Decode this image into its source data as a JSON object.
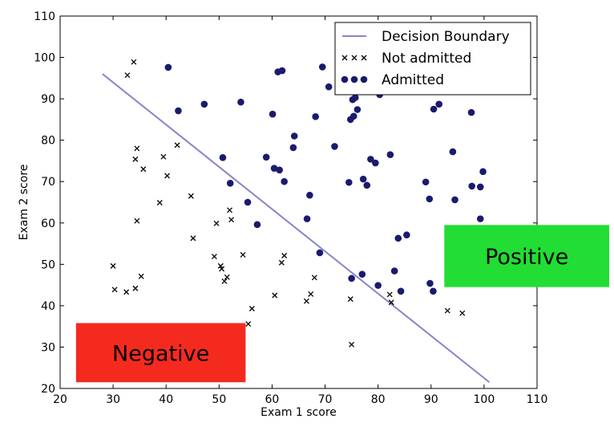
{
  "chart_data": {
    "type": "scatter",
    "xlabel": "Exam 1 score",
    "ylabel": "Exam 2 score",
    "xlim": [
      20,
      110
    ],
    "ylim": [
      20,
      110
    ],
    "xticks": [
      20,
      30,
      40,
      50,
      60,
      70,
      80,
      90,
      100,
      110
    ],
    "yticks": [
      20,
      30,
      40,
      50,
      60,
      70,
      80,
      90,
      100,
      110
    ],
    "grid": false,
    "legend_position": "top-right",
    "colors": {
      "boundary": "#8884c8",
      "admitted": "#1a1a6e",
      "not_admitted": "#000000",
      "negative_box": "#f52a1e",
      "positive_box": "#22dd33"
    },
    "boundary": {
      "name": "Decision Boundary",
      "x": [
        28,
        101
      ],
      "y": [
        96,
        21.5
      ]
    },
    "series": [
      {
        "name": "Not admitted",
        "marker": "x",
        "points": [
          [
            32.7,
            95.7
          ],
          [
            33.9,
            98.9
          ],
          [
            34.2,
            75.4
          ],
          [
            34.5,
            78.0
          ],
          [
            35.7,
            73.0
          ],
          [
            39.5,
            76.0
          ],
          [
            40.2,
            71.4
          ],
          [
            42.1,
            78.8
          ],
          [
            38.8,
            64.9
          ],
          [
            44.7,
            66.5
          ],
          [
            34.5,
            60.5
          ],
          [
            45.1,
            56.3
          ],
          [
            30.0,
            49.6
          ],
          [
            30.3,
            43.9
          ],
          [
            32.5,
            43.3
          ],
          [
            34.2,
            44.2
          ],
          [
            35.3,
            47.1
          ],
          [
            49.1,
            51.9
          ],
          [
            49.5,
            59.9
          ],
          [
            50.3,
            49.6
          ],
          [
            50.5,
            48.9
          ],
          [
            51.0,
            45.9
          ],
          [
            51.5,
            46.9
          ],
          [
            52.0,
            63.1
          ],
          [
            52.3,
            60.8
          ],
          [
            54.5,
            52.3
          ],
          [
            55.5,
            35.6
          ],
          [
            56.2,
            39.3
          ],
          [
            60.5,
            42.5
          ],
          [
            61.8,
            50.4
          ],
          [
            62.3,
            52.1
          ],
          [
            66.5,
            41.1
          ],
          [
            67.3,
            42.8
          ],
          [
            68.0,
            46.8
          ],
          [
            74.8,
            41.6
          ],
          [
            75.0,
            30.6
          ],
          [
            82.2,
            42.7
          ],
          [
            82.5,
            40.8
          ],
          [
            93.1,
            38.8
          ],
          [
            95.9,
            38.2
          ]
        ]
      },
      {
        "name": "Admitted",
        "marker": "o",
        "points": [
          [
            40.4,
            97.6
          ],
          [
            42.3,
            87.1
          ],
          [
            47.2,
            88.7
          ],
          [
            50.7,
            75.8
          ],
          [
            52.1,
            69.6
          ],
          [
            54.1,
            89.2
          ],
          [
            55.4,
            65.0
          ],
          [
            57.2,
            59.6
          ],
          [
            58.9,
            75.9
          ],
          [
            60.1,
            86.3
          ],
          [
            60.4,
            73.2
          ],
          [
            61.1,
            96.5
          ],
          [
            61.4,
            72.8
          ],
          [
            61.9,
            96.8
          ],
          [
            62.3,
            70.0
          ],
          [
            64.0,
            78.2
          ],
          [
            64.2,
            81.0
          ],
          [
            66.6,
            61.0
          ],
          [
            67.1,
            66.7
          ],
          [
            68.2,
            85.7
          ],
          [
            69.0,
            52.8
          ],
          [
            69.5,
            97.7
          ],
          [
            70.7,
            92.9
          ],
          [
            71.8,
            78.5
          ],
          [
            74.5,
            69.8
          ],
          [
            74.8,
            85.0
          ],
          [
            75.0,
            46.6
          ],
          [
            75.2,
            89.8
          ],
          [
            75.4,
            85.8
          ],
          [
            75.7,
            90.3
          ],
          [
            76.1,
            87.4
          ],
          [
            77.0,
            47.6
          ],
          [
            77.2,
            70.6
          ],
          [
            77.9,
            69.1
          ],
          [
            78.6,
            75.4
          ],
          [
            79.5,
            74.5
          ],
          [
            80.0,
            44.9
          ],
          [
            80.3,
            91.0
          ],
          [
            82.3,
            76.5
          ],
          [
            83.1,
            48.4
          ],
          [
            83.8,
            56.3
          ],
          [
            84.3,
            43.5
          ],
          [
            85.4,
            57.1
          ],
          [
            89.0,
            69.9
          ],
          [
            89.7,
            65.8
          ],
          [
            89.8,
            45.4
          ],
          [
            90.4,
            43.5
          ],
          [
            90.5,
            87.5
          ],
          [
            91.5,
            88.7
          ],
          [
            94.1,
            77.2
          ],
          [
            94.5,
            65.6
          ],
          [
            97.6,
            86.7
          ],
          [
            97.7,
            68.9
          ],
          [
            99.3,
            61.0
          ],
          [
            99.3,
            68.7
          ],
          [
            99.8,
            72.4
          ]
        ]
      }
    ],
    "annotations": [
      {
        "text": "Negative",
        "color": "#f52a1e",
        "x0": 23,
        "x1": 55,
        "y0": 21.5,
        "y1": 35.8
      },
      {
        "text": "Positive",
        "color": "#22dd33",
        "x0": 92.5,
        "x1": 125,
        "y0": 44.5,
        "y1": 59.5
      }
    ]
  }
}
